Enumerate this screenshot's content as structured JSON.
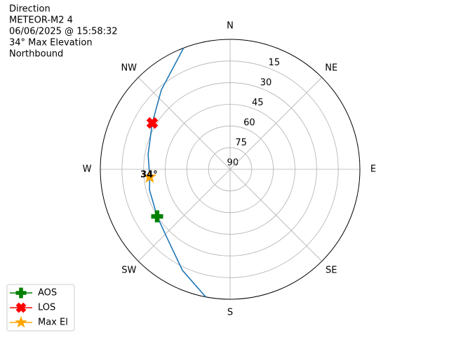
{
  "chart_data": {
    "type": "polar",
    "title": [
      "Direction",
      "METEOR-M2 4",
      "06/06/2025 @ 15:58:32",
      "34° Max Elevation",
      "Northbound"
    ],
    "theta_zero": "N",
    "theta_direction": "clockwise",
    "xticks": [
      {
        "value": 0,
        "label": "N"
      },
      {
        "value": 45,
        "label": "NE"
      },
      {
        "value": 90,
        "label": "E"
      },
      {
        "value": 135,
        "label": "SE"
      },
      {
        "value": 180,
        "label": "S"
      },
      {
        "value": 225,
        "label": "SW"
      },
      {
        "value": 270,
        "label": "W"
      },
      {
        "value": 315,
        "label": "NW"
      }
    ],
    "ylim": [
      90,
      0
    ],
    "yticks": [
      15,
      30,
      45,
      60,
      75,
      90
    ],
    "grid": true,
    "path": {
      "color": "#1f77b4",
      "x": [
        190.8,
        205.3,
        223.5,
        237.2,
        255.8,
        264.6,
        280.2,
        300.7,
        319.1,
        339
      ],
      "y": [
        0,
        12.6,
        25.8,
        29.8,
        32.3,
        34,
        32.2,
        27.2,
        17.2,
        0
      ]
    },
    "series": [
      {
        "name": "AOS",
        "color": "#008000",
        "marker": "plus",
        "x": [
          237.2
        ],
        "values": [
          29.8
        ]
      },
      {
        "name": "LOS",
        "color": "#ff0000",
        "marker": "x",
        "x": [
          300.7
        ],
        "values": [
          27.2
        ]
      },
      {
        "name": "Max El",
        "color": "#ffa500",
        "marker": "star",
        "x": [
          264.6
        ],
        "values": [
          34
        ],
        "value_labels": [
          "34°"
        ]
      }
    ],
    "legend": "lower left"
  }
}
